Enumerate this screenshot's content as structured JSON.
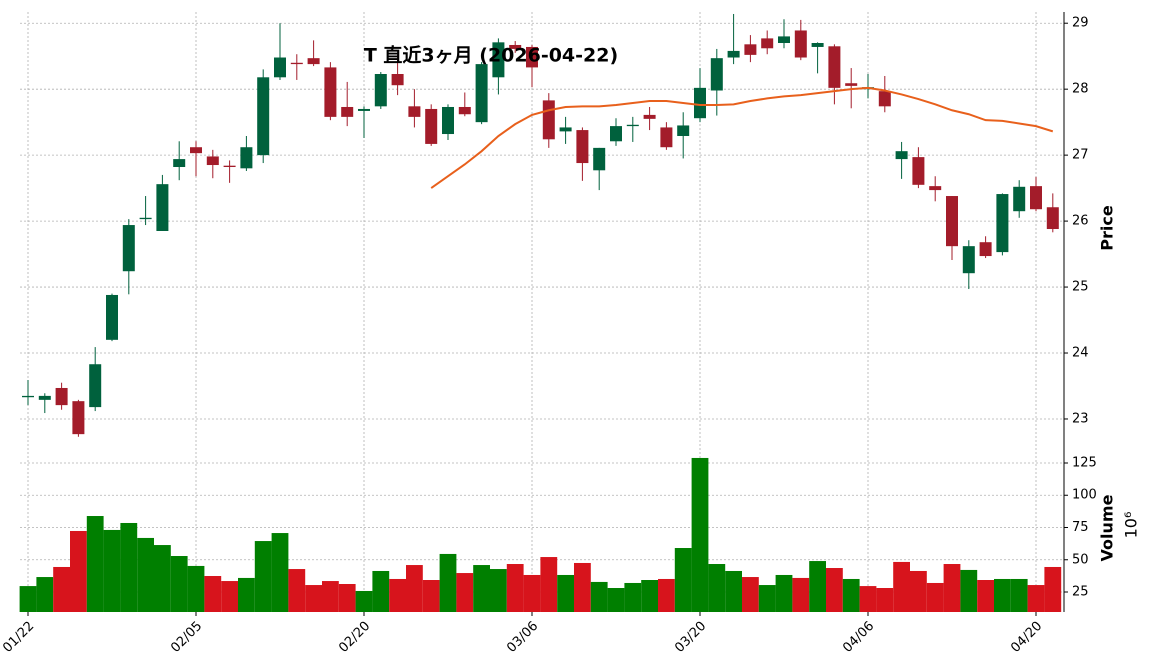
{
  "chart_data": {
    "type": "candlestick",
    "title": "T  直近3ヶ月 (2026-04-22)",
    "categories": [
      "01/22",
      null,
      null,
      null,
      null,
      null,
      null,
      null,
      null,
      null,
      "02/05",
      null,
      null,
      null,
      null,
      null,
      null,
      null,
      null,
      null,
      "02/20",
      null,
      null,
      null,
      null,
      null,
      null,
      null,
      null,
      null,
      "03/06",
      null,
      null,
      null,
      null,
      null,
      null,
      null,
      null,
      null,
      "03/20",
      null,
      null,
      null,
      null,
      null,
      null,
      null,
      null,
      null,
      "04/06",
      null,
      null,
      null,
      null,
      null,
      null,
      null,
      null,
      null,
      "04/20",
      null
    ],
    "open": [
      23.33,
      23.29,
      23.47,
      23.27,
      23.18,
      24.2,
      25.24,
      26.03,
      25.85,
      26.82,
      27.12,
      26.98,
      26.84,
      26.8,
      27.0,
      28.18,
      28.4,
      28.47,
      28.33,
      27.73,
      27.67,
      27.74,
      28.23,
      27.74,
      27.7,
      27.32,
      27.73,
      27.5,
      28.18,
      28.67,
      28.64,
      27.83,
      27.36,
      27.38,
      26.77,
      27.21,
      27.44,
      27.61,
      27.42,
      27.29,
      27.56,
      27.98,
      28.48,
      28.68,
      28.77,
      28.7,
      28.89,
      28.64,
      28.65,
      28.09,
      28.0,
      27.97,
      26.94,
      26.97,
      26.53,
      26.38,
      25.21,
      25.68,
      25.53,
      26.15,
      26.53,
      26.21
    ],
    "high": [
      23.59,
      23.39,
      23.55,
      23.29,
      24.09,
      24.9,
      26.03,
      26.38,
      26.7,
      27.21,
      27.21,
      27.08,
      26.92,
      27.29,
      28.3,
      29.0,
      28.53,
      28.74,
      28.41,
      28.11,
      27.74,
      28.26,
      28.52,
      28.0,
      27.77,
      27.77,
      27.95,
      28.41,
      28.77,
      28.73,
      28.67,
      27.94,
      27.58,
      27.42,
      27.11,
      27.56,
      27.58,
      27.73,
      27.5,
      27.65,
      28.32,
      28.61,
      29.14,
      28.82,
      28.89,
      29.06,
      29.05,
      28.71,
      28.68,
      28.32,
      28.23,
      28.2,
      27.2,
      27.12,
      26.68,
      26.38,
      25.71,
      25.77,
      26.42,
      26.62,
      26.67,
      26.42
    ],
    "low": [
      23.21,
      23.09,
      23.14,
      22.73,
      23.12,
      24.18,
      24.89,
      25.94,
      25.85,
      26.62,
      26.68,
      26.65,
      26.58,
      26.76,
      26.88,
      28.14,
      28.14,
      28.35,
      27.53,
      27.44,
      27.26,
      27.7,
      27.91,
      27.42,
      27.14,
      27.23,
      27.59,
      27.47,
      27.92,
      28.55,
      28.03,
      27.11,
      27.17,
      26.61,
      26.47,
      27.14,
      27.2,
      27.38,
      27.08,
      26.95,
      27.5,
      27.6,
      28.38,
      28.41,
      28.53,
      28.62,
      28.44,
      28.24,
      27.77,
      27.71,
      27.86,
      27.65,
      26.64,
      26.5,
      26.3,
      25.41,
      24.97,
      25.44,
      25.48,
      26.05,
      26.15,
      25.83
    ],
    "close": [
      23.35,
      23.35,
      23.21,
      22.77,
      23.83,
      24.88,
      25.94,
      26.05,
      26.56,
      26.94,
      27.03,
      26.85,
      26.82,
      27.12,
      28.18,
      28.48,
      28.38,
      28.38,
      27.58,
      27.58,
      27.7,
      28.23,
      28.06,
      27.58,
      27.17,
      27.73,
      27.62,
      28.38,
      28.71,
      28.61,
      28.33,
      27.24,
      27.42,
      26.88,
      27.11,
      27.44,
      27.46,
      27.55,
      27.12,
      27.45,
      28.02,
      28.47,
      28.58,
      28.52,
      28.62,
      28.8,
      28.48,
      28.7,
      28.02,
      28.05,
      28.03,
      27.74,
      27.06,
      26.55,
      26.47,
      25.62,
      25.62,
      25.47,
      26.41,
      26.52,
      26.18,
      25.88
    ],
    "up_color": "#00613d",
    "down_color": "#a31c2a",
    "ylim": [
      22.56,
      29.17
    ],
    "yticks": [
      23,
      24,
      25,
      26,
      27,
      28,
      29
    ],
    "ylabel": "Price",
    "grid": true,
    "moving_average": {
      "color": "#e8601c",
      "values": [
        null,
        null,
        null,
        null,
        null,
        null,
        null,
        null,
        null,
        null,
        null,
        null,
        null,
        null,
        null,
        null,
        null,
        null,
        null,
        null,
        null,
        null,
        null,
        null,
        26.5,
        26.68,
        26.86,
        27.06,
        27.29,
        27.47,
        27.61,
        27.68,
        27.73,
        27.74,
        27.74,
        27.76,
        27.79,
        27.82,
        27.82,
        27.79,
        27.76,
        27.76,
        27.77,
        27.82,
        27.86,
        27.89,
        27.91,
        27.94,
        27.97,
        28.0,
        28.02,
        27.98,
        27.92,
        27.85,
        27.77,
        27.68,
        27.62,
        27.53,
        27.52,
        27.48,
        27.44,
        27.36
      ]
    },
    "volume": {
      "values": [
        29.6,
        36.6,
        44.4,
        72.3,
        83.9,
        73.1,
        78.5,
        66.9,
        61.4,
        52.9,
        45.2,
        37.4,
        33.5,
        35.9,
        64.5,
        70.7,
        42.8,
        30.4,
        33.5,
        31.2,
        25.8,
        41.3,
        35.1,
        45.9,
        34.3,
        54.5,
        39.7,
        45.9,
        42.8,
        46.7,
        38.2,
        52.1,
        38.2,
        47.5,
        32.8,
        28.1,
        32.0,
        34.3,
        35.1,
        59.1,
        128.9,
        46.7,
        41.3,
        36.6,
        30.4,
        38.2,
        35.9,
        49.0,
        43.6,
        35.1,
        29.6,
        28.1,
        48.3,
        41.3,
        32.0,
        46.7,
        42.1,
        34.3,
        35.1,
        35.1,
        30.4,
        44.4
      ],
      "colors": [
        "#007f00",
        "#007f00",
        "#d7141c",
        "#d7141c",
        "#007f00",
        "#007f00",
        "#007f00",
        "#007f00",
        "#007f00",
        "#007f00",
        "#007f00",
        "#d7141c",
        "#d7141c",
        "#007f00",
        "#007f00",
        "#007f00",
        "#d7141c",
        "#d7141c",
        "#d7141c",
        "#d7141c",
        "#007f00",
        "#007f00",
        "#d7141c",
        "#d7141c",
        "#d7141c",
        "#007f00",
        "#d7141c",
        "#007f00",
        "#007f00",
        "#d7141c",
        "#d7141c",
        "#d7141c",
        "#007f00",
        "#d7141c",
        "#007f00",
        "#007f00",
        "#007f00",
        "#007f00",
        "#d7141c",
        "#007f00",
        "#007f00",
        "#007f00",
        "#007f00",
        "#d7141c",
        "#007f00",
        "#007f00",
        "#d7141c",
        "#007f00",
        "#d7141c",
        "#007f00",
        "#d7141c",
        "#d7141c",
        "#d7141c",
        "#d7141c",
        "#d7141c",
        "#d7141c",
        "#007f00",
        "#d7141c",
        "#007f00",
        "#007f00",
        "#d7141c",
        "#d7141c"
      ],
      "ylim": [
        9.5,
        131.2
      ],
      "yticks": [
        25,
        50,
        75,
        100,
        125
      ],
      "ylabel": "Volume",
      "scale_label": "10⁶"
    }
  }
}
